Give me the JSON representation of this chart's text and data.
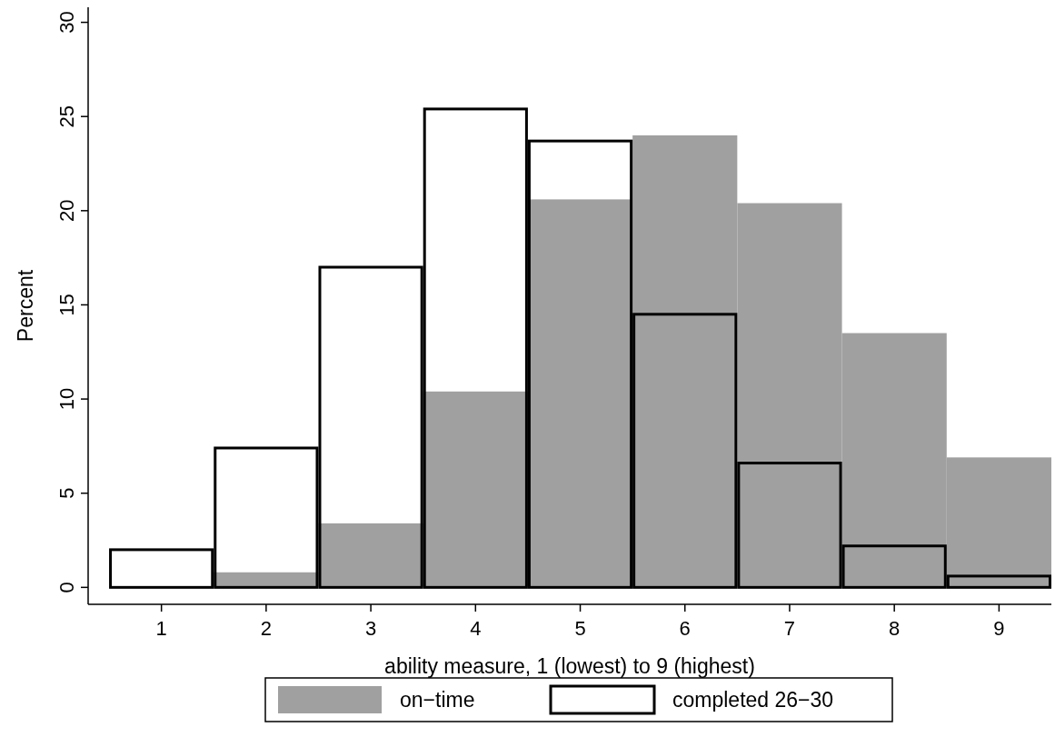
{
  "chart_data": {
    "type": "histogram",
    "xlabel": "ability measure, 1 (lowest) to 9 (highest)",
    "ylabel": "Percent",
    "bins": [
      0.5,
      1.5,
      2.5,
      3.5,
      4.5,
      5.5,
      6.5,
      7.5,
      8.5,
      9.5
    ],
    "series": [
      {
        "name": "on−time",
        "color": "#a0a0a0",
        "values": [
          0.05,
          0.8,
          3.4,
          10.4,
          20.6,
          24.0,
          20.4,
          13.5,
          6.9
        ]
      },
      {
        "name": "completed 26−30",
        "color": "#000000",
        "values": [
          2.0,
          7.4,
          17.0,
          25.4,
          23.7,
          14.5,
          6.6,
          2.2,
          0.6
        ]
      }
    ],
    "xlim": [
      0.3,
      9.5
    ],
    "xticks": [
      1,
      2,
      3,
      4,
      5,
      6,
      7,
      8,
      9
    ],
    "ylim": [
      -0.9,
      30.8
    ],
    "yticks": [
      0,
      5,
      10,
      15,
      20,
      25,
      30
    ],
    "grid": false,
    "legend": "bottom"
  }
}
